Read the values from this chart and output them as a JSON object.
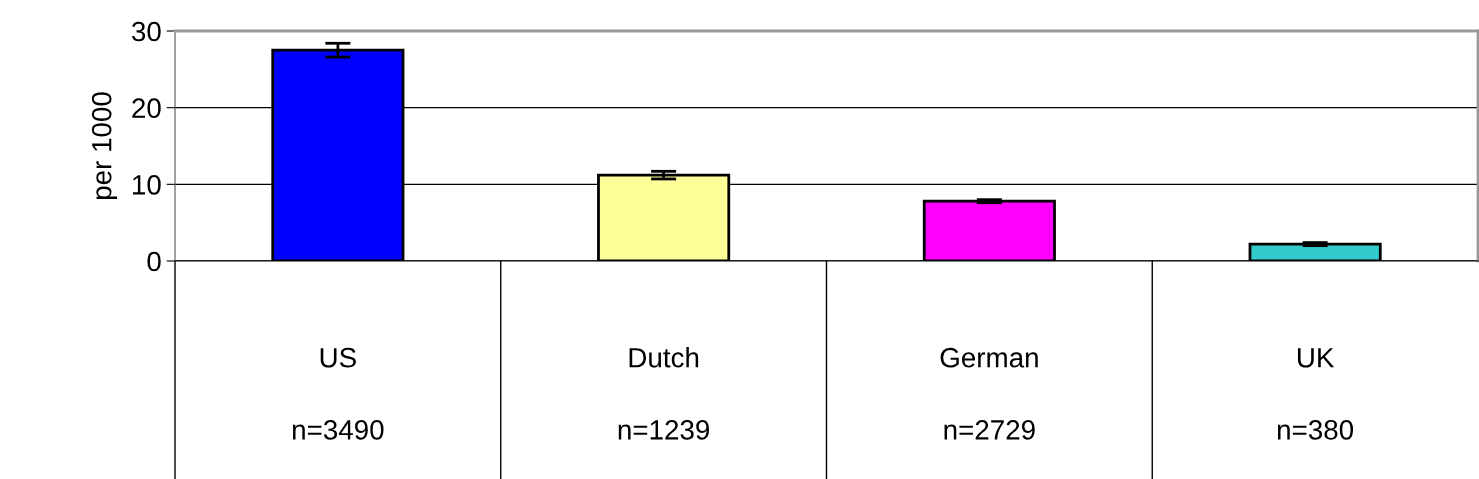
{
  "chart_data": {
    "type": "bar",
    "ylabel": "per 1000",
    "categories": [
      "US\nn=3490",
      "Dutch\nn=1239",
      "German\nn=2729",
      "UK\nn=380"
    ],
    "values": [
      27.5,
      11.2,
      7.8,
      2.2
    ],
    "errors": [
      0.9,
      0.5,
      0.2,
      0.2
    ],
    "colors": [
      "#0000ff",
      "#ffff99",
      "#ff00ff",
      "#33cccc"
    ],
    "ylim": [
      0,
      30
    ],
    "yticks": [
      0,
      10,
      20,
      30
    ],
    "grid": "y"
  }
}
